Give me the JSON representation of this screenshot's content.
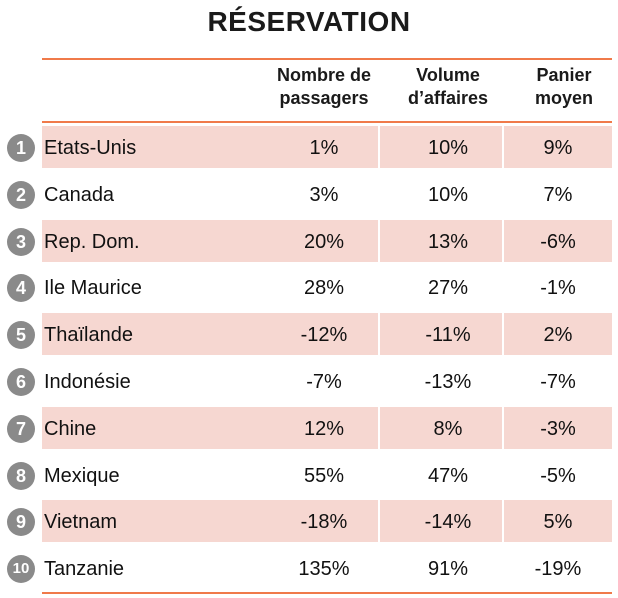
{
  "title": "RÉSERVATION",
  "colors": {
    "rule": "#f07a4a",
    "row_shade": "#f6d7d1",
    "badge": "#8a8a8a"
  },
  "headers": {
    "col1": "Nombre de passagers",
    "col2": "Volume d’affaires",
    "col3": "Panier moyen"
  },
  "rows": [
    {
      "rank": "1",
      "country": "Etats-Unis",
      "passagers": "1%",
      "volume": "10%",
      "panier": "9%"
    },
    {
      "rank": "2",
      "country": "Canada",
      "passagers": "3%",
      "volume": "10%",
      "panier": "7%"
    },
    {
      "rank": "3",
      "country": "Rep. Dom.",
      "passagers": "20%",
      "volume": "13%",
      "panier": "-6%"
    },
    {
      "rank": "4",
      "country": "Ile Maurice",
      "passagers": "28%",
      "volume": "27%",
      "panier": "-1%"
    },
    {
      "rank": "5",
      "country": "Thaïlande",
      "passagers": "-12%",
      "volume": "-11%",
      "panier": "2%"
    },
    {
      "rank": "6",
      "country": "Indonésie",
      "passagers": "-7%",
      "volume": "-13%",
      "panier": "-7%"
    },
    {
      "rank": "7",
      "country": "Chine",
      "passagers": "12%",
      "volume": "8%",
      "panier": "-3%"
    },
    {
      "rank": "8",
      "country": "Mexique",
      "passagers": "55%",
      "volume": "47%",
      "panier": "-5%"
    },
    {
      "rank": "9",
      "country": "Vietnam",
      "passagers": "-18%",
      "volume": "-14%",
      "panier": "5%"
    },
    {
      "rank": "10",
      "country": "Tanzanie",
      "passagers": "135%",
      "volume": "91%",
      "panier": "-19%"
    }
  ]
}
